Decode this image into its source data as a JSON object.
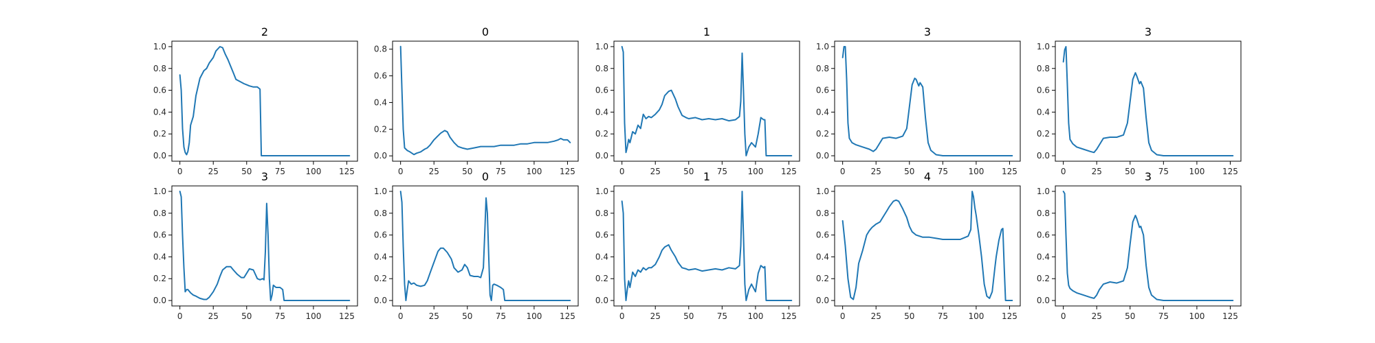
{
  "figure": {
    "line_color": "#1f77b4",
    "background": "#ffffff"
  },
  "chart_data": [
    {
      "type": "line",
      "title": "2",
      "xlim": [
        -6,
        133
      ],
      "ylim": [
        -0.05,
        1.05
      ],
      "xticks": [
        0,
        25,
        50,
        75,
        100,
        125
      ],
      "yticks": [
        0.0,
        0.2,
        0.4,
        0.6,
        0.8,
        1.0
      ],
      "ytick_labels": [
        "0.0",
        "0.2",
        "0.4",
        "0.6",
        "0.8",
        "1.0"
      ],
      "x": [
        0,
        1,
        2,
        3,
        4,
        5,
        6,
        7,
        8,
        10,
        12,
        15,
        18,
        20,
        22,
        25,
        27,
        30,
        32,
        34,
        36,
        38,
        40,
        42,
        45,
        48,
        50,
        52,
        55,
        58,
        59,
        60,
        61,
        65,
        80,
        100,
        127
      ],
      "y": [
        0.74,
        0.6,
        0.25,
        0.08,
        0.03,
        0.01,
        0.04,
        0.12,
        0.28,
        0.36,
        0.55,
        0.71,
        0.78,
        0.8,
        0.85,
        0.9,
        0.96,
        1.0,
        0.99,
        0.93,
        0.88,
        0.82,
        0.76,
        0.7,
        0.68,
        0.66,
        0.65,
        0.64,
        0.63,
        0.63,
        0.62,
        0.61,
        0.0,
        0.0,
        0.0,
        0.0,
        0.0
      ]
    },
    {
      "type": "line",
      "title": "0",
      "xlim": [
        -6,
        133
      ],
      "ylim": [
        -0.04,
        0.86
      ],
      "xticks": [
        0,
        25,
        50,
        75,
        100,
        125
      ],
      "yticks": [
        0.0,
        0.2,
        0.4,
        0.6,
        0.8
      ],
      "ytick_labels": [
        "0.0",
        "0.2",
        "0.4",
        "0.6",
        "0.8"
      ],
      "x": [
        0,
        1,
        2,
        3,
        5,
        7,
        10,
        12,
        15,
        18,
        20,
        22,
        25,
        28,
        30,
        33,
        35,
        37,
        40,
        43,
        46,
        50,
        55,
        60,
        65,
        70,
        75,
        80,
        85,
        90,
        95,
        100,
        105,
        110,
        115,
        118,
        120,
        122,
        125,
        127
      ],
      "y": [
        0.82,
        0.5,
        0.2,
        0.06,
        0.04,
        0.03,
        0.01,
        0.02,
        0.03,
        0.05,
        0.06,
        0.08,
        0.12,
        0.15,
        0.17,
        0.19,
        0.18,
        0.14,
        0.1,
        0.07,
        0.06,
        0.05,
        0.06,
        0.07,
        0.07,
        0.07,
        0.08,
        0.08,
        0.08,
        0.09,
        0.09,
        0.1,
        0.1,
        0.1,
        0.11,
        0.12,
        0.13,
        0.12,
        0.12,
        0.1
      ]
    },
    {
      "type": "line",
      "title": "1",
      "xlim": [
        -6,
        133
      ],
      "ylim": [
        -0.05,
        1.05
      ],
      "xticks": [
        0,
        25,
        50,
        75,
        100,
        125
      ],
      "yticks": [
        0.0,
        0.2,
        0.4,
        0.6,
        0.8,
        1.0
      ],
      "ytick_labels": [
        "0.0",
        "0.2",
        "0.4",
        "0.6",
        "0.8",
        "1.0"
      ],
      "x": [
        0,
        1,
        2,
        3,
        4,
        5,
        6,
        8,
        10,
        12,
        14,
        16,
        18,
        20,
        22,
        25,
        28,
        30,
        32,
        35,
        37,
        40,
        42,
        45,
        48,
        50,
        55,
        60,
        65,
        70,
        75,
        80,
        85,
        88,
        89,
        90,
        91,
        92,
        93,
        95,
        97,
        100,
        102,
        104,
        106,
        107,
        108,
        110,
        120,
        127
      ],
      "y": [
        1.0,
        0.95,
        0.3,
        0.03,
        0.08,
        0.15,
        0.12,
        0.22,
        0.2,
        0.28,
        0.25,
        0.38,
        0.34,
        0.36,
        0.35,
        0.38,
        0.42,
        0.47,
        0.55,
        0.59,
        0.6,
        0.52,
        0.45,
        0.37,
        0.35,
        0.34,
        0.35,
        0.33,
        0.34,
        0.33,
        0.34,
        0.32,
        0.33,
        0.36,
        0.5,
        0.94,
        0.6,
        0.2,
        0.0,
        0.08,
        0.12,
        0.08,
        0.2,
        0.35,
        0.33,
        0.33,
        0.0,
        0.0,
        0.0,
        0.0
      ]
    },
    {
      "type": "line",
      "title": "3",
      "xlim": [
        -6,
        133
      ],
      "ylim": [
        -0.05,
        1.05
      ],
      "xticks": [
        0,
        25,
        50,
        75,
        100,
        125
      ],
      "yticks": [
        0.0,
        0.2,
        0.4,
        0.6,
        0.8,
        1.0
      ],
      "ytick_labels": [
        "0.0",
        "0.2",
        "0.4",
        "0.6",
        "0.8",
        "1.0"
      ],
      "x": [
        0,
        1,
        2,
        3,
        4,
        5,
        7,
        10,
        15,
        20,
        23,
        25,
        27,
        30,
        35,
        40,
        45,
        48,
        50,
        52,
        54,
        55,
        57,
        58,
        60,
        62,
        64,
        66,
        70,
        75,
        80,
        100,
        127
      ],
      "y": [
        0.9,
        1.0,
        1.0,
        0.7,
        0.3,
        0.16,
        0.12,
        0.1,
        0.08,
        0.06,
        0.04,
        0.06,
        0.1,
        0.16,
        0.17,
        0.16,
        0.18,
        0.25,
        0.45,
        0.65,
        0.71,
        0.7,
        0.64,
        0.67,
        0.63,
        0.35,
        0.12,
        0.05,
        0.01,
        0.0,
        0.0,
        0.0,
        0.0
      ]
    },
    {
      "type": "line",
      "title": "3",
      "xlim": [
        -6,
        133
      ],
      "ylim": [
        -0.05,
        1.05
      ],
      "xticks": [
        0,
        25,
        50,
        75,
        100,
        125
      ],
      "yticks": [
        0.0,
        0.2,
        0.4,
        0.6,
        0.8,
        1.0
      ],
      "ytick_labels": [
        "0.0",
        "0.2",
        "0.4",
        "0.6",
        "0.8",
        "1.0"
      ],
      "x": [
        0,
        1,
        2,
        3,
        4,
        5,
        7,
        10,
        15,
        20,
        23,
        25,
        27,
        30,
        35,
        40,
        45,
        48,
        50,
        52,
        54,
        55,
        57,
        58,
        60,
        62,
        64,
        66,
        70,
        75,
        80,
        100,
        127
      ],
      "y": [
        0.86,
        0.97,
        1.0,
        0.65,
        0.3,
        0.15,
        0.11,
        0.08,
        0.06,
        0.04,
        0.03,
        0.06,
        0.1,
        0.16,
        0.17,
        0.17,
        0.19,
        0.3,
        0.5,
        0.7,
        0.76,
        0.73,
        0.66,
        0.68,
        0.62,
        0.35,
        0.12,
        0.05,
        0.01,
        0.0,
        0.0,
        0.0,
        0.0
      ]
    },
    {
      "type": "line",
      "title": "3",
      "xlim": [
        -6,
        133
      ],
      "ylim": [
        -0.05,
        1.05
      ],
      "xticks": [
        0,
        25,
        50,
        75,
        100,
        125
      ],
      "yticks": [
        0.0,
        0.2,
        0.4,
        0.6,
        0.8,
        1.0
      ],
      "ytick_labels": [
        "0.0",
        "0.2",
        "0.4",
        "0.6",
        "0.8",
        "1.0"
      ],
      "x": [
        0,
        1,
        2,
        3,
        4,
        5,
        6,
        8,
        10,
        12,
        15,
        18,
        20,
        22,
        25,
        28,
        30,
        32,
        35,
        38,
        40,
        43,
        46,
        48,
        50,
        52,
        55,
        58,
        60,
        62,
        63,
        64,
        65,
        66,
        67,
        68,
        69,
        70,
        72,
        75,
        77,
        78,
        80,
        90,
        100,
        127
      ],
      "y": [
        1.0,
        0.95,
        0.6,
        0.3,
        0.08,
        0.1,
        0.1,
        0.07,
        0.05,
        0.04,
        0.02,
        0.01,
        0.01,
        0.03,
        0.08,
        0.15,
        0.22,
        0.28,
        0.31,
        0.31,
        0.28,
        0.24,
        0.21,
        0.21,
        0.25,
        0.29,
        0.28,
        0.2,
        0.19,
        0.2,
        0.19,
        0.45,
        0.89,
        0.6,
        0.2,
        0.0,
        0.05,
        0.14,
        0.12,
        0.12,
        0.1,
        0.0,
        0.0,
        0.0,
        0.0,
        0.0
      ]
    },
    {
      "type": "line",
      "title": "0",
      "xlim": [
        -6,
        133
      ],
      "ylim": [
        -0.05,
        1.05
      ],
      "xticks": [
        0,
        25,
        50,
        75,
        100,
        125
      ],
      "yticks": [
        0.0,
        0.2,
        0.4,
        0.6,
        0.8,
        1.0
      ],
      "ytick_labels": [
        "0.0",
        "0.2",
        "0.4",
        "0.6",
        "0.8",
        "1.0"
      ],
      "x": [
        0,
        1,
        2,
        3,
        4,
        5,
        6,
        8,
        10,
        12,
        15,
        18,
        20,
        22,
        25,
        28,
        30,
        32,
        35,
        38,
        40,
        43,
        46,
        48,
        50,
        52,
        55,
        58,
        60,
        62,
        63,
        64,
        65,
        66,
        67,
        68,
        69,
        70,
        72,
        75,
        77,
        78,
        80,
        90,
        100,
        127
      ],
      "y": [
        1.0,
        0.9,
        0.5,
        0.15,
        0.0,
        0.1,
        0.18,
        0.15,
        0.16,
        0.14,
        0.13,
        0.14,
        0.18,
        0.25,
        0.35,
        0.45,
        0.48,
        0.48,
        0.44,
        0.38,
        0.3,
        0.26,
        0.28,
        0.33,
        0.3,
        0.23,
        0.22,
        0.22,
        0.21,
        0.3,
        0.6,
        0.94,
        0.8,
        0.4,
        0.05,
        0.0,
        0.14,
        0.15,
        0.14,
        0.12,
        0.1,
        0.0,
        0.0,
        0.0,
        0.0,
        0.0
      ]
    },
    {
      "type": "line",
      "title": "1",
      "xlim": [
        -6,
        133
      ],
      "ylim": [
        -0.05,
        1.05
      ],
      "xticks": [
        0,
        25,
        50,
        75,
        100,
        125
      ],
      "yticks": [
        0.0,
        0.2,
        0.4,
        0.6,
        0.8,
        1.0
      ],
      "ytick_labels": [
        "0.0",
        "0.2",
        "0.4",
        "0.6",
        "0.8",
        "1.0"
      ],
      "x": [
        0,
        1,
        2,
        3,
        4,
        5,
        6,
        8,
        10,
        12,
        14,
        16,
        18,
        20,
        22,
        25,
        28,
        30,
        32,
        35,
        37,
        40,
        42,
        45,
        48,
        50,
        55,
        60,
        65,
        70,
        75,
        80,
        85,
        88,
        89,
        90,
        91,
        92,
        93,
        95,
        97,
        100,
        102,
        104,
        106,
        107,
        108,
        110,
        120,
        127
      ],
      "y": [
        0.91,
        0.8,
        0.2,
        0.0,
        0.1,
        0.18,
        0.12,
        0.26,
        0.22,
        0.28,
        0.26,
        0.3,
        0.28,
        0.3,
        0.3,
        0.33,
        0.4,
        0.46,
        0.49,
        0.51,
        0.46,
        0.4,
        0.35,
        0.3,
        0.29,
        0.28,
        0.29,
        0.27,
        0.28,
        0.29,
        0.28,
        0.3,
        0.29,
        0.32,
        0.5,
        1.0,
        0.6,
        0.15,
        0.0,
        0.1,
        0.15,
        0.08,
        0.25,
        0.32,
        0.3,
        0.31,
        0.0,
        0.0,
        0.0,
        0.0
      ]
    },
    {
      "type": "line",
      "title": "4",
      "xlim": [
        -6,
        133
      ],
      "ylim": [
        -0.05,
        1.05
      ],
      "xticks": [
        0,
        25,
        50,
        75,
        100,
        125
      ],
      "yticks": [
        0.0,
        0.2,
        0.4,
        0.6,
        0.8,
        1.0
      ],
      "ytick_labels": [
        "0.0",
        "0.2",
        "0.4",
        "0.6",
        "0.8",
        "1.0"
      ],
      "x": [
        0,
        2,
        4,
        6,
        8,
        10,
        12,
        15,
        18,
        20,
        22,
        25,
        28,
        30,
        33,
        35,
        38,
        40,
        42,
        45,
        48,
        50,
        52,
        55,
        60,
        65,
        70,
        75,
        80,
        85,
        88,
        90,
        92,
        94,
        96,
        97,
        98,
        99,
        100,
        102,
        104,
        106,
        108,
        110,
        112,
        114,
        115,
        117,
        119,
        120,
        121,
        122,
        124,
        127
      ],
      "y": [
        0.73,
        0.5,
        0.2,
        0.03,
        0.01,
        0.12,
        0.34,
        0.46,
        0.6,
        0.64,
        0.67,
        0.7,
        0.72,
        0.76,
        0.82,
        0.86,
        0.91,
        0.92,
        0.91,
        0.84,
        0.76,
        0.68,
        0.63,
        0.6,
        0.58,
        0.58,
        0.57,
        0.56,
        0.56,
        0.56,
        0.56,
        0.57,
        0.58,
        0.59,
        0.65,
        1.0,
        0.95,
        0.85,
        0.78,
        0.6,
        0.4,
        0.15,
        0.04,
        0.02,
        0.08,
        0.3,
        0.4,
        0.55,
        0.65,
        0.66,
        0.3,
        0.0,
        0.0,
        0.0
      ]
    },
    {
      "type": "line",
      "title": "3",
      "xlim": [
        -6,
        133
      ],
      "ylim": [
        -0.05,
        1.05
      ],
      "xticks": [
        0,
        25,
        50,
        75,
        100,
        125
      ],
      "yticks": [
        0.0,
        0.2,
        0.4,
        0.6,
        0.8,
        1.0
      ],
      "ytick_labels": [
        "0.0",
        "0.2",
        "0.4",
        "0.6",
        "0.8",
        "1.0"
      ],
      "x": [
        0,
        1,
        2,
        3,
        4,
        5,
        7,
        10,
        15,
        20,
        23,
        25,
        27,
        30,
        35,
        40,
        45,
        48,
        50,
        52,
        54,
        55,
        57,
        58,
        60,
        62,
        64,
        66,
        70,
        75,
        80,
        100,
        127
      ],
      "y": [
        1.0,
        0.98,
        0.6,
        0.25,
        0.14,
        0.11,
        0.09,
        0.07,
        0.05,
        0.03,
        0.02,
        0.05,
        0.1,
        0.15,
        0.17,
        0.16,
        0.18,
        0.3,
        0.52,
        0.72,
        0.78,
        0.75,
        0.67,
        0.68,
        0.6,
        0.32,
        0.12,
        0.05,
        0.01,
        0.0,
        0.0,
        0.0,
        0.0
      ]
    }
  ]
}
